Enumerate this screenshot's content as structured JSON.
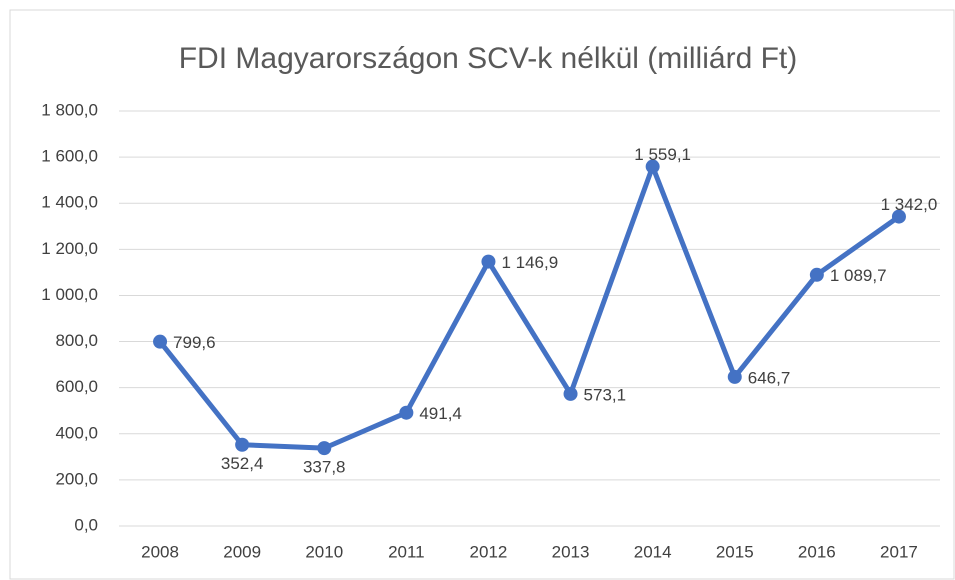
{
  "chart_data": {
    "type": "line",
    "title": "FDI Magyarországon SCV-k nélkül (milliárd Ft)",
    "categories": [
      "2008",
      "2009",
      "2010",
      "2011",
      "2012",
      "2013",
      "2014",
      "2015",
      "2016",
      "2017"
    ],
    "series": [
      {
        "color": "#4472c4",
        "values": [
          799.6,
          352.4,
          337.8,
          491.4,
          1146.9,
          573.1,
          1559.1,
          646.7,
          1089.7,
          1342.0
        ],
        "value_labels": [
          "799,6",
          "352,4",
          "337,8",
          "491,4",
          "1 146,9",
          "573,1",
          "1 559,1",
          "646,7",
          "1 089,7",
          "1 342,0"
        ]
      }
    ],
    "ylim": [
      0,
      1800
    ],
    "yticks": [
      {
        "value": 0,
        "label": "0,0"
      },
      {
        "value": 200,
        "label": "200,0"
      },
      {
        "value": 400,
        "label": "400,0"
      },
      {
        "value": 600,
        "label": "600,0"
      },
      {
        "value": 800,
        "label": "800,0"
      },
      {
        "value": 1000,
        "label": "1 000,0"
      },
      {
        "value": 1200,
        "label": "1 200,0"
      },
      {
        "value": 1400,
        "label": "1 400,0"
      },
      {
        "value": 1600,
        "label": "1 600,0"
      },
      {
        "value": 1800,
        "label": "1 800,0"
      }
    ],
    "grid": true
  }
}
